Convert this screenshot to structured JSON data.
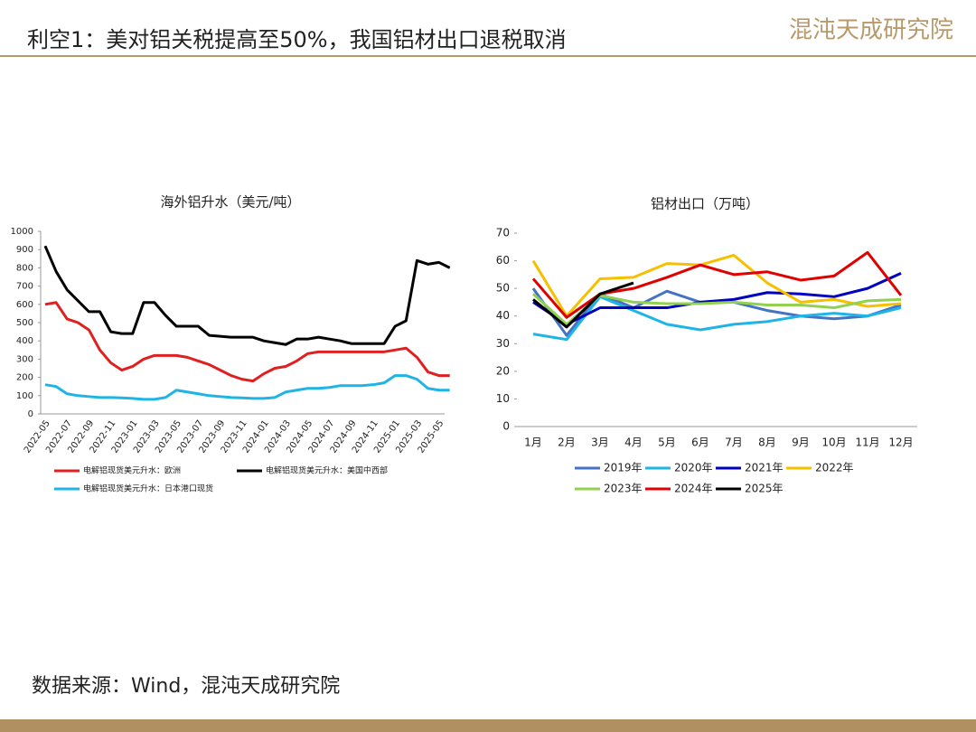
{
  "title": "利空1：美对铝关税提高至50%，我国铝材出口退税取消",
  "logo": "混沌天成研究院",
  "source": "数据来源：Wind，混沌天成研究院",
  "chart_data": [
    {
      "type": "line",
      "title": "海外铝升水（美元/吨）",
      "categories": [
        "2022-05",
        null,
        "2022-07",
        null,
        "2022-09",
        null,
        "2022-11",
        null,
        "2023-01",
        null,
        "2023-03",
        null,
        "2023-05",
        null,
        "2023-07",
        null,
        "2023-09",
        null,
        "2023-11",
        null,
        "2024-01",
        null,
        "2024-03",
        null,
        "2024-05",
        null,
        "2024-07",
        null,
        "2024-09",
        null,
        "2024-11",
        null,
        "2025-01",
        null,
        "2025-03",
        null,
        "2025-05",
        null
      ],
      "ylim": [
        0,
        1000
      ],
      "yticks": [
        0,
        100,
        200,
        300,
        400,
        500,
        600,
        700,
        800,
        900,
        1000
      ],
      "series": [
        {
          "name": "电解铝现货美元升水：欧洲",
          "color": "#e02020",
          "values": [
            600,
            610,
            520,
            500,
            460,
            350,
            280,
            240,
            260,
            300,
            320,
            320,
            320,
            310,
            290,
            270,
            240,
            210,
            190,
            180,
            220,
            250,
            260,
            290,
            330,
            340,
            340,
            340,
            340,
            340,
            340,
            340,
            350,
            360,
            310,
            230,
            210,
            210
          ]
        },
        {
          "name": "电解铝现货美元升水：美国中西部",
          "color": "#000000",
          "values": [
            920,
            780,
            680,
            620,
            560,
            560,
            450,
            440,
            440,
            610,
            610,
            540,
            480,
            480,
            480,
            430,
            425,
            420,
            420,
            420,
            400,
            390,
            380,
            410,
            410,
            420,
            410,
            400,
            385,
            385,
            385,
            385,
            480,
            510,
            840,
            820,
            830,
            800
          ]
        },
        {
          "name": "电解铝现货美元升水：日本港口现货",
          "color": "#1eb4e6",
          "values": [
            160,
            150,
            110,
            100,
            95,
            90,
            90,
            88,
            85,
            80,
            80,
            90,
            130,
            120,
            110,
            100,
            95,
            90,
            88,
            85,
            85,
            90,
            120,
            130,
            140,
            140,
            145,
            155,
            155,
            155,
            160,
            170,
            210,
            210,
            190,
            140,
            130,
            130
          ]
        }
      ]
    },
    {
      "type": "line",
      "title": "铝材出口（万吨）",
      "categories": [
        "1月",
        "2月",
        "3月",
        "4月",
        "5月",
        "6月",
        "7月",
        "8月",
        "9月",
        "10月",
        "11月",
        "12月"
      ],
      "ylim": [
        0,
        70
      ],
      "yticks": [
        0,
        10,
        20,
        30,
        40,
        50,
        60,
        70
      ],
      "series": [
        {
          "name": "2019年",
          "color": "#4472c4",
          "values": [
            50,
            33,
            48,
            43,
            49,
            45,
            45,
            42,
            40,
            39,
            40,
            44
          ]
        },
        {
          "name": "2020年",
          "color": "#1eb4e6",
          "values": [
            33.5,
            31.5,
            47,
            42,
            37,
            35,
            37,
            38,
            40,
            41,
            40,
            43
          ]
        },
        {
          "name": "2021年",
          "color": "#0000c0",
          "values": [
            45,
            37,
            43,
            43,
            43,
            45,
            46,
            48.5,
            48,
            47,
            50,
            55.5
          ]
        },
        {
          "name": "2022年",
          "color": "#f6c000",
          "values": [
            60,
            40,
            53.5,
            54,
            59,
            58.5,
            62,
            52,
            45,
            46,
            43.5,
            44.5
          ]
        },
        {
          "name": "2023年",
          "color": "#92d050",
          "values": [
            48,
            37,
            47.5,
            45,
            44.5,
            44.5,
            45,
            44,
            44,
            43,
            45.5,
            46
          ]
        },
        {
          "name": "2024年",
          "color": "#e00000",
          "values": [
            53.5,
            39.5,
            48,
            50,
            54,
            58.5,
            55,
            56,
            53,
            54.5,
            63,
            47.5
          ]
        },
        {
          "name": "2025年",
          "color": "#000000",
          "values": [
            46,
            36,
            48,
            52,
            null,
            null,
            null,
            null,
            null,
            null,
            null,
            null
          ]
        }
      ]
    }
  ]
}
